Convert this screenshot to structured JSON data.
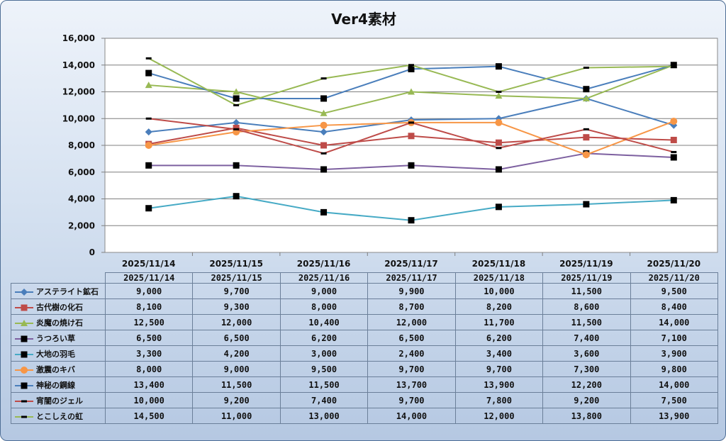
{
  "chart_data": {
    "type": "line",
    "title": "Ver4素材",
    "xlabel": "",
    "ylabel": "",
    "ylim": [
      0,
      16000
    ],
    "yticks": [
      "0",
      "2,000",
      "4,000",
      "6,000",
      "8,000",
      "10,000",
      "12,000",
      "14,000",
      "16,000"
    ],
    "grid": true,
    "legend": "table-below",
    "categories": [
      "2025/11/14",
      "2025/11/15",
      "2025/11/16",
      "2025/11/17",
      "2025/11/18",
      "2025/11/19",
      "2025/11/20"
    ],
    "series": [
      {
        "name": "アステライト鉱石",
        "color": "#4a7ebb",
        "marker": "diamond",
        "values": [
          9000,
          9700,
          9000,
          9900,
          10000,
          11500,
          9500
        ],
        "labels": [
          "9,000",
          "9,700",
          "9,000",
          "9,900",
          "10,000",
          "11,500",
          "9,500"
        ]
      },
      {
        "name": "古代樹の化石",
        "color": "#be4b48",
        "marker": "square",
        "values": [
          8100,
          9300,
          8000,
          8700,
          8200,
          8600,
          8400
        ],
        "labels": [
          "8,100",
          "9,300",
          "8,000",
          "8,700",
          "8,200",
          "8,600",
          "8,400"
        ]
      },
      {
        "name": "炎魔の焼け石",
        "color": "#98b954",
        "marker": "triangle",
        "values": [
          12500,
          12000,
          10400,
          12000,
          11700,
          11500,
          14000
        ],
        "labels": [
          "12,500",
          "12,000",
          "10,400",
          "12,000",
          "11,700",
          "11,500",
          "14,000"
        ]
      },
      {
        "name": "うつろい草",
        "color": "#7d60a0",
        "marker": "square-black",
        "values": [
          6500,
          6500,
          6200,
          6500,
          6200,
          7400,
          7100
        ],
        "labels": [
          "6,500",
          "6,500",
          "6,200",
          "6,500",
          "6,200",
          "7,400",
          "7,100"
        ]
      },
      {
        "name": "大地の羽毛",
        "color": "#46aac5",
        "marker": "square-black",
        "values": [
          3300,
          4200,
          3000,
          2400,
          3400,
          3600,
          3900
        ],
        "labels": [
          "3,300",
          "4,200",
          "3,000",
          "2,400",
          "3,400",
          "3,600",
          "3,900"
        ]
      },
      {
        "name": "激震のキバ",
        "color": "#f79646",
        "marker": "circle",
        "values": [
          8000,
          9000,
          9500,
          9700,
          9700,
          7300,
          9800
        ],
        "labels": [
          "8,000",
          "9,000",
          "9,500",
          "9,700",
          "9,700",
          "7,300",
          "9,800"
        ]
      },
      {
        "name": "神秘の鋼線",
        "color": "#4a7ebb",
        "marker": "square-black",
        "values": [
          13400,
          11500,
          11500,
          13700,
          13900,
          12200,
          14000
        ],
        "labels": [
          "13,400",
          "11,500",
          "11,500",
          "13,700",
          "13,900",
          "12,200",
          "14,000"
        ]
      },
      {
        "name": "宵闇のジェル",
        "color": "#be4b48",
        "marker": "dash",
        "values": [
          10000,
          9200,
          7400,
          9700,
          7800,
          9200,
          7500
        ],
        "labels": [
          "10,000",
          "9,200",
          "7,400",
          "9,700",
          "7,800",
          "9,200",
          "7,500"
        ]
      },
      {
        "name": "とこしえの虹",
        "color": "#98b954",
        "marker": "dash",
        "values": [
          14500,
          11000,
          13000,
          14000,
          12000,
          13800,
          13900
        ],
        "labels": [
          "14,500",
          "11,000",
          "13,000",
          "14,000",
          "12,000",
          "13,800",
          "13,900"
        ]
      }
    ]
  }
}
